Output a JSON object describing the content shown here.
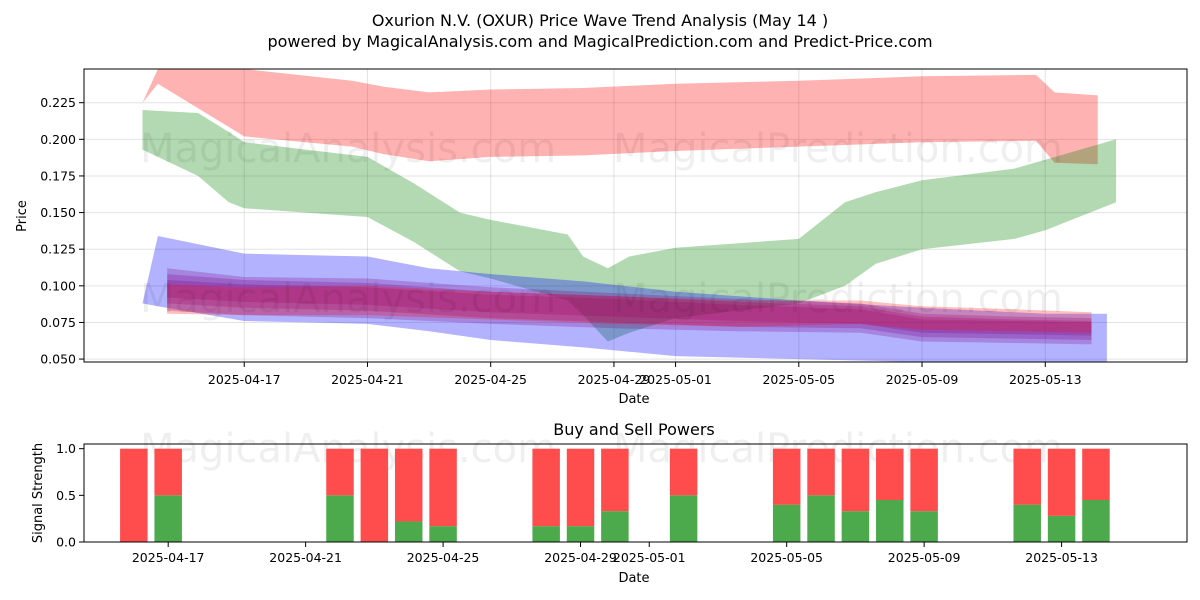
{
  "header": {
    "title_line1": "Oxurion N.V. (OXUR) Price Wave Trend Analysis (May 14 )",
    "title_line2": "powered by MagicalAnalysis.com and MagicalPrediction.com and Predict-Price.com"
  },
  "watermarks": {
    "left": "MagicalAnalysis.com",
    "right": "MagicalPrediction.com"
  },
  "chart_data": [
    {
      "type": "area",
      "title": "Oxurion N.V. (OXUR) Price Wave Trend Analysis (May 14 )",
      "xlabel": "Date",
      "ylabel": "Price",
      "xlim": [
        -5.2,
        30.6
      ],
      "ylim": [
        0.048,
        0.248
      ],
      "grid": true,
      "x_ticks": [
        {
          "value": 0,
          "label": "2025-04-17"
        },
        {
          "value": 4,
          "label": "2025-04-21"
        },
        {
          "value": 8,
          "label": "2025-04-25"
        },
        {
          "value": 12,
          "label": "2025-04-29"
        },
        {
          "value": 14,
          "label": "2025-05-01"
        },
        {
          "value": 18,
          "label": "2025-05-05"
        },
        {
          "value": 22,
          "label": "2025-05-09"
        },
        {
          "value": 26,
          "label": "2025-05-13"
        }
      ],
      "y_ticks": [
        0.05,
        0.075,
        0.1,
        0.125,
        0.15,
        0.175,
        0.2,
        0.225
      ],
      "series": [
        {
          "name": "red-upper-band",
          "color": "#ff0000",
          "opacity": 0.3,
          "x": [
            -3.3,
            -2.8,
            0,
            3.5,
            4.5,
            6.0,
            8.0,
            11.0,
            14.0,
            18.0,
            22.0,
            25.7,
            26.3,
            27.7
          ],
          "upper": [
            0.225,
            0.248,
            0.248,
            0.24,
            0.236,
            0.232,
            0.234,
            0.235,
            0.238,
            0.24,
            0.243,
            0.244,
            0.232,
            0.23
          ],
          "lower": [
            0.225,
            0.238,
            0.202,
            0.195,
            0.19,
            0.185,
            0.188,
            0.189,
            0.192,
            0.195,
            0.198,
            0.199,
            0.184,
            0.183
          ]
        },
        {
          "name": "green-band",
          "color": "#008000",
          "opacity": 0.3,
          "x": [
            -3.3,
            -1.5,
            -0.5,
            0,
            2.0,
            4.0,
            5.5,
            7.0,
            8.0,
            10.5,
            11.0,
            11.8,
            12.5,
            14.0,
            18.0,
            19.5,
            20.5,
            22.0,
            25.0,
            26.0,
            28.3
          ],
          "upper": [
            0.22,
            0.218,
            0.205,
            0.198,
            0.193,
            0.188,
            0.17,
            0.15,
            0.145,
            0.135,
            0.12,
            0.112,
            0.12,
            0.126,
            0.132,
            0.157,
            0.164,
            0.172,
            0.18,
            0.186,
            0.2
          ],
          "lower": [
            0.193,
            0.175,
            0.157,
            0.153,
            0.15,
            0.147,
            0.13,
            0.11,
            0.105,
            0.09,
            0.08,
            0.062,
            0.068,
            0.078,
            0.088,
            0.1,
            0.115,
            0.125,
            0.132,
            0.138,
            0.157
          ]
        },
        {
          "name": "blue-outer-band",
          "color": "#0000ff",
          "opacity": 0.3,
          "x": [
            -3.3,
            -2.8,
            0,
            2.0,
            4.0,
            6.0,
            8.0,
            11.0,
            14.0,
            18.0,
            22.0,
            26.0,
            28.0
          ],
          "upper": [
            0.088,
            0.134,
            0.122,
            0.121,
            0.12,
            0.112,
            0.108,
            0.103,
            0.096,
            0.09,
            0.085,
            0.081,
            0.081
          ],
          "lower": [
            0.088,
            0.086,
            0.076,
            0.075,
            0.074,
            0.069,
            0.063,
            0.058,
            0.052,
            0.05,
            0.048,
            0.048,
            0.048
          ]
        },
        {
          "name": "purple-band-1",
          "color": "#800080",
          "opacity": 0.25,
          "x": [
            -2.5,
            0,
            4.0,
            8.0,
            12.0,
            16.0,
            20.0,
            22.0,
            25.0,
            27.5
          ],
          "upper": [
            0.112,
            0.106,
            0.105,
            0.099,
            0.095,
            0.091,
            0.088,
            0.081,
            0.079,
            0.078
          ],
          "lower": [
            0.083,
            0.08,
            0.078,
            0.074,
            0.071,
            0.069,
            0.068,
            0.062,
            0.061,
            0.06
          ]
        },
        {
          "name": "purple-band-2",
          "color": "#800080",
          "opacity": 0.25,
          "x": [
            -2.5,
            0,
            4.0,
            8.0,
            12.0,
            16.0,
            20.0,
            22.0,
            25.0,
            27.5
          ],
          "upper": [
            0.108,
            0.104,
            0.102,
            0.096,
            0.093,
            0.089,
            0.086,
            0.079,
            0.077,
            0.076
          ],
          "lower": [
            0.088,
            0.085,
            0.083,
            0.078,
            0.075,
            0.072,
            0.071,
            0.065,
            0.064,
            0.063
          ]
        },
        {
          "name": "purple-band-3",
          "color": "#800080",
          "opacity": 0.25,
          "x": [
            -2.5,
            0,
            4.0,
            8.0,
            12.0,
            16.0,
            20.0,
            22.0,
            25.0,
            27.5
          ],
          "upper": [
            0.104,
            0.101,
            0.099,
            0.094,
            0.091,
            0.087,
            0.084,
            0.077,
            0.076,
            0.075
          ],
          "lower": [
            0.092,
            0.089,
            0.087,
            0.082,
            0.079,
            0.076,
            0.074,
            0.068,
            0.067,
            0.066
          ]
        },
        {
          "name": "red-lower-band",
          "color": "#ff0000",
          "opacity": 0.25,
          "x": [
            -2.5,
            0,
            4.0,
            8.0,
            12.0,
            16.0,
            20.0,
            22.0,
            25.0,
            27.5
          ],
          "upper": [
            0.101,
            0.099,
            0.1,
            0.096,
            0.093,
            0.09,
            0.09,
            0.086,
            0.084,
            0.082
          ],
          "lower": [
            0.081,
            0.08,
            0.08,
            0.077,
            0.074,
            0.072,
            0.074,
            0.07,
            0.069,
            0.068
          ]
        }
      ]
    },
    {
      "type": "bar",
      "title": "Buy and Sell Powers",
      "xlabel": "Date",
      "ylabel": "Signal Strength",
      "xlim": [
        -2.45,
        29.65
      ],
      "ylim": [
        0,
        1.05
      ],
      "y_ticks": [
        0.0,
        0.5,
        1.0
      ],
      "x_ticks": [
        {
          "value": 0,
          "label": "2025-04-17"
        },
        {
          "value": 4,
          "label": "2025-04-21"
        },
        {
          "value": 8,
          "label": "2025-04-25"
        },
        {
          "value": 12,
          "label": "2025-04-29"
        },
        {
          "value": 14,
          "label": "2025-05-01"
        },
        {
          "value": 18,
          "label": "2025-05-05"
        },
        {
          "value": 22,
          "label": "2025-05-09"
        },
        {
          "value": 26,
          "label": "2025-05-13"
        }
      ],
      "buy_color": "#4caa4c",
      "sell_color": "#ff4c4c",
      "x": [
        -1,
        0,
        5,
        6,
        7,
        8,
        11,
        12,
        13,
        15,
        18,
        19,
        20,
        21,
        22,
        25,
        26,
        27
      ],
      "buy": [
        0.0,
        0.5,
        0.5,
        0.0,
        0.22,
        0.17,
        0.17,
        0.17,
        0.33,
        0.5,
        0.4,
        0.5,
        0.33,
        0.45,
        0.33,
        0.4,
        0.28,
        0.45
      ],
      "sell": [
        1.0,
        0.5,
        0.5,
        1.0,
        0.78,
        0.83,
        0.83,
        0.83,
        0.67,
        0.5,
        0.6,
        0.5,
        0.67,
        0.55,
        0.67,
        0.6,
        0.72,
        0.55
      ]
    }
  ]
}
